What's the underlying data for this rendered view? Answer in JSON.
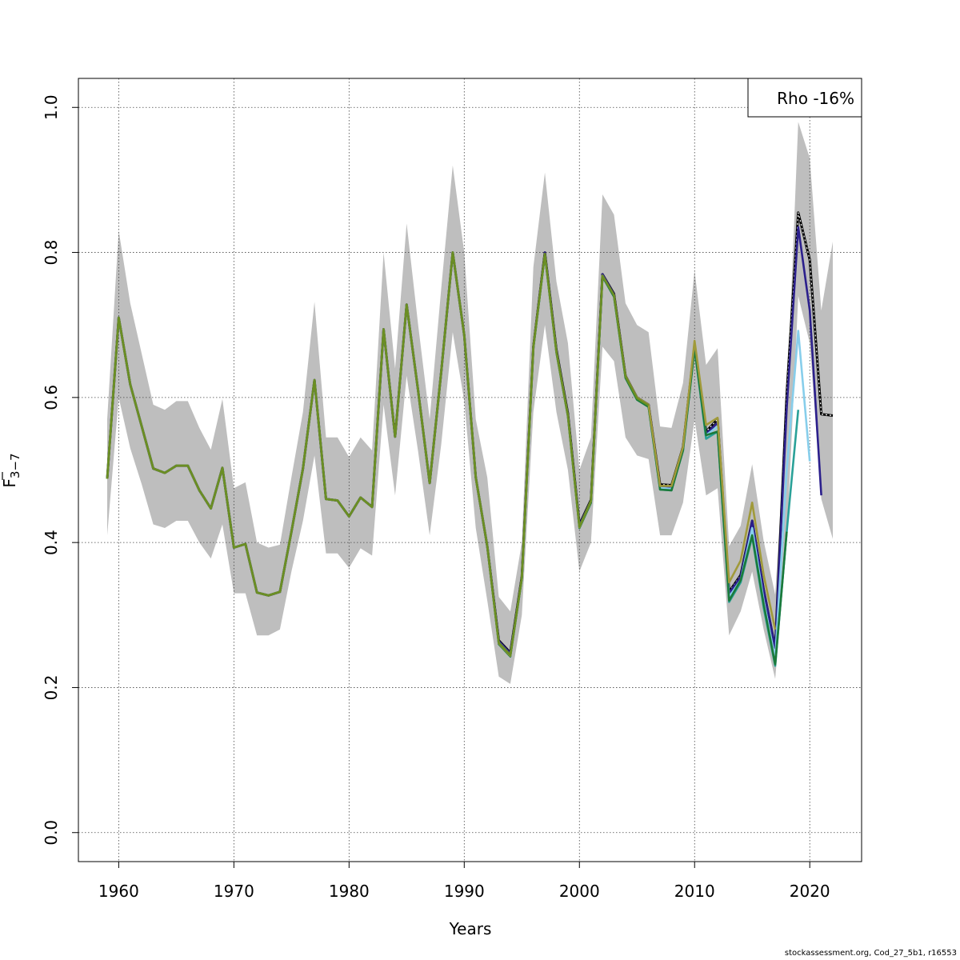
{
  "footer": "stockassessment.org, Cod_27_5b1, r16553",
  "chart_data": {
    "type": "line",
    "xlabel": "Years",
    "ylabel": "F̄3−7",
    "ylabel_main": "F",
    "ylabel_sub": "3−7",
    "xlim": [
      1956.5,
      2024.5
    ],
    "ylim": [
      -0.04,
      1.04
    ],
    "xticks": [
      1960,
      1970,
      1980,
      1990,
      2000,
      2010,
      2020
    ],
    "yticks": [
      0.0,
      0.2,
      0.4,
      0.6,
      0.8,
      1.0
    ],
    "ytick_labels": [
      "0.0",
      "0.2",
      "0.4",
      "0.6",
      "0.8",
      "1.0"
    ],
    "grid": true,
    "legend": {
      "position": "top-right",
      "text": "Rho -16%"
    },
    "confidence_band": {
      "color": "#bebebe",
      "years": [
        1959,
        1960,
        1961,
        1962,
        1963,
        1964,
        1965,
        1966,
        1967,
        1968,
        1969,
        1970,
        1971,
        1972,
        1973,
        1974,
        1975,
        1976,
        1977,
        1978,
        1979,
        1980,
        1981,
        1982,
        1983,
        1984,
        1985,
        1986,
        1987,
        1988,
        1989,
        1990,
        1991,
        1992,
        1993,
        1994,
        1995,
        1996,
        1997,
        1998,
        1999,
        2000,
        2001,
        2002,
        2003,
        2004,
        2005,
        2006,
        2007,
        2008,
        2009,
        2010,
        2011,
        2012,
        2013,
        2014,
        2015,
        2016,
        2017,
        2018,
        2019,
        2020,
        2021,
        2022
      ],
      "lower": [
        0.41,
        0.6,
        0.53,
        0.48,
        0.425,
        0.42,
        0.43,
        0.43,
        0.4,
        0.378,
        0.425,
        0.33,
        0.33,
        0.272,
        0.272,
        0.28,
        0.36,
        0.43,
        0.52,
        0.385,
        0.385,
        0.365,
        0.392,
        0.382,
        0.59,
        0.465,
        0.63,
        0.525,
        0.41,
        0.535,
        0.69,
        0.595,
        0.42,
        0.32,
        0.215,
        0.205,
        0.3,
        0.58,
        0.7,
        0.58,
        0.5,
        0.36,
        0.4,
        0.67,
        0.65,
        0.545,
        0.52,
        0.515,
        0.41,
        0.41,
        0.455,
        0.57,
        0.465,
        0.475,
        0.272,
        0.305,
        0.36,
        0.28,
        0.212,
        0.4,
        0.74,
        0.675,
        0.46,
        0.405
      ],
      "upper": [
        0.57,
        0.83,
        0.73,
        0.66,
        0.59,
        0.583,
        0.595,
        0.595,
        0.558,
        0.528,
        0.598,
        0.475,
        0.483,
        0.4,
        0.393,
        0.397,
        0.49,
        0.58,
        0.732,
        0.545,
        0.545,
        0.518,
        0.545,
        0.527,
        0.8,
        0.64,
        0.84,
        0.7,
        0.57,
        0.75,
        0.92,
        0.8,
        0.57,
        0.49,
        0.325,
        0.305,
        0.4,
        0.78,
        0.91,
        0.76,
        0.675,
        0.5,
        0.545,
        0.88,
        0.852,
        0.73,
        0.7,
        0.69,
        0.56,
        0.558,
        0.62,
        0.775,
        0.645,
        0.668,
        0.395,
        0.423,
        0.508,
        0.402,
        0.328,
        0.59,
        0.98,
        0.93,
        0.72,
        0.815
      ]
    },
    "series": [
      {
        "color": "#000000",
        "dashed": true,
        "years": [
          1959,
          1960,
          1961,
          1962,
          1963,
          1964,
          1965,
          1966,
          1967,
          1968,
          1969,
          1970,
          1971,
          1972,
          1973,
          1974,
          1975,
          1976,
          1977,
          1978,
          1979,
          1980,
          1981,
          1982,
          1983,
          1984,
          1985,
          1986,
          1987,
          1988,
          1989,
          1990,
          1991,
          1992,
          1993,
          1994,
          1995,
          1996,
          1997,
          1998,
          1999,
          2000,
          2001,
          2002,
          2003,
          2004,
          2005,
          2006,
          2007,
          2008,
          2009,
          2010,
          2011,
          2012,
          2013,
          2014,
          2015,
          2016,
          2017,
          2018,
          2019,
          2020,
          2021,
          2022
        ],
        "values": [
          0.488,
          0.71,
          0.618,
          0.56,
          0.502,
          0.496,
          0.506,
          0.506,
          0.472,
          0.447,
          0.503,
          0.393,
          0.398,
          0.331,
          0.327,
          0.332,
          0.415,
          0.502,
          0.624,
          0.46,
          0.458,
          0.436,
          0.462,
          0.449,
          0.694,
          0.546,
          0.728,
          0.609,
          0.482,
          0.635,
          0.8,
          0.686,
          0.49,
          0.395,
          0.265,
          0.248,
          0.353,
          0.67,
          0.8,
          0.666,
          0.578,
          0.425,
          0.459,
          0.77,
          0.743,
          0.63,
          0.6,
          0.59,
          0.48,
          0.479,
          0.532,
          0.672,
          0.553,
          0.57,
          0.332,
          0.355,
          0.43,
          0.335,
          0.255,
          0.605,
          0.855,
          0.79,
          0.577,
          0.575
        ]
      },
      {
        "color": "#2b1f8c",
        "dashed": false,
        "years": [
          1959,
          1960,
          1961,
          1962,
          1963,
          1964,
          1965,
          1966,
          1967,
          1968,
          1969,
          1970,
          1971,
          1972,
          1973,
          1974,
          1975,
          1976,
          1977,
          1978,
          1979,
          1980,
          1981,
          1982,
          1983,
          1984,
          1985,
          1986,
          1987,
          1988,
          1989,
          1990,
          1991,
          1992,
          1993,
          1994,
          1995,
          1996,
          1997,
          1998,
          1999,
          2000,
          2001,
          2002,
          2003,
          2004,
          2005,
          2006,
          2007,
          2008,
          2009,
          2010,
          2011,
          2012,
          2013,
          2014,
          2015,
          2016,
          2017,
          2018,
          2019,
          2020,
          2021
        ],
        "values": [
          0.488,
          0.71,
          0.618,
          0.56,
          0.502,
          0.496,
          0.506,
          0.506,
          0.472,
          0.447,
          0.503,
          0.393,
          0.398,
          0.331,
          0.327,
          0.332,
          0.415,
          0.502,
          0.624,
          0.46,
          0.458,
          0.436,
          0.462,
          0.449,
          0.694,
          0.546,
          0.728,
          0.609,
          0.482,
          0.635,
          0.8,
          0.686,
          0.49,
          0.395,
          0.264,
          0.247,
          0.352,
          0.67,
          0.8,
          0.665,
          0.577,
          0.424,
          0.458,
          0.77,
          0.742,
          0.63,
          0.6,
          0.59,
          0.478,
          0.477,
          0.53,
          0.672,
          0.55,
          0.565,
          0.33,
          0.353,
          0.43,
          0.335,
          0.255,
          0.585,
          0.835,
          0.72,
          0.465
        ]
      },
      {
        "color": "#87ceeb",
        "dashed": false,
        "years": [
          1959,
          1960,
          1961,
          1962,
          1963,
          1964,
          1965,
          1966,
          1967,
          1968,
          1969,
          1970,
          1971,
          1972,
          1973,
          1974,
          1975,
          1976,
          1977,
          1978,
          1979,
          1980,
          1981,
          1982,
          1983,
          1984,
          1985,
          1986,
          1987,
          1988,
          1989,
          1990,
          1991,
          1992,
          1993,
          1994,
          1995,
          1996,
          1997,
          1998,
          1999,
          2000,
          2001,
          2002,
          2003,
          2004,
          2005,
          2006,
          2007,
          2008,
          2009,
          2010,
          2011,
          2012,
          2013,
          2014,
          2015,
          2016,
          2017,
          2018,
          2019,
          2020
        ],
        "values": [
          0.488,
          0.71,
          0.618,
          0.56,
          0.502,
          0.496,
          0.506,
          0.506,
          0.472,
          0.447,
          0.503,
          0.393,
          0.398,
          0.331,
          0.327,
          0.332,
          0.415,
          0.502,
          0.624,
          0.46,
          0.458,
          0.436,
          0.462,
          0.449,
          0.694,
          0.546,
          0.728,
          0.609,
          0.482,
          0.635,
          0.8,
          0.686,
          0.49,
          0.395,
          0.262,
          0.245,
          0.35,
          0.668,
          0.797,
          0.663,
          0.575,
          0.422,
          0.456,
          0.768,
          0.74,
          0.628,
          0.598,
          0.588,
          0.475,
          0.474,
          0.528,
          0.67,
          0.548,
          0.56,
          0.325,
          0.348,
          0.42,
          0.32,
          0.24,
          0.5,
          0.692,
          0.512
        ]
      },
      {
        "color": "#2aa198",
        "dashed": false,
        "years": [
          1959,
          1960,
          1961,
          1962,
          1963,
          1964,
          1965,
          1966,
          1967,
          1968,
          1969,
          1970,
          1971,
          1972,
          1973,
          1974,
          1975,
          1976,
          1977,
          1978,
          1979,
          1980,
          1981,
          1982,
          1983,
          1984,
          1985,
          1986,
          1987,
          1988,
          1989,
          1990,
          1991,
          1992,
          1993,
          1994,
          1995,
          1996,
          1997,
          1998,
          1999,
          2000,
          2001,
          2002,
          2003,
          2004,
          2005,
          2006,
          2007,
          2008,
          2009,
          2010,
          2011,
          2012,
          2013,
          2014,
          2015,
          2016,
          2017,
          2018,
          2019
        ],
        "values": [
          0.488,
          0.71,
          0.618,
          0.56,
          0.502,
          0.496,
          0.506,
          0.506,
          0.472,
          0.447,
          0.503,
          0.393,
          0.398,
          0.331,
          0.327,
          0.332,
          0.415,
          0.502,
          0.624,
          0.46,
          0.458,
          0.436,
          0.462,
          0.449,
          0.694,
          0.546,
          0.728,
          0.609,
          0.482,
          0.635,
          0.8,
          0.686,
          0.49,
          0.395,
          0.26,
          0.243,
          0.35,
          0.668,
          0.797,
          0.662,
          0.574,
          0.42,
          0.455,
          0.767,
          0.739,
          0.627,
          0.597,
          0.587,
          0.473,
          0.472,
          0.527,
          0.668,
          0.543,
          0.553,
          0.318,
          0.345,
          0.408,
          0.31,
          0.23,
          0.415,
          0.583
        ]
      },
      {
        "color": "#1a7a3a",
        "dashed": false,
        "years": [
          1959,
          1960,
          1961,
          1962,
          1963,
          1964,
          1965,
          1966,
          1967,
          1968,
          1969,
          1970,
          1971,
          1972,
          1973,
          1974,
          1975,
          1976,
          1977,
          1978,
          1979,
          1980,
          1981,
          1982,
          1983,
          1984,
          1985,
          1986,
          1987,
          1988,
          1989,
          1990,
          1991,
          1992,
          1993,
          1994,
          1995,
          1996,
          1997,
          1998,
          1999,
          2000,
          2001,
          2002,
          2003,
          2004,
          2005,
          2006,
          2007,
          2008,
          2009,
          2010,
          2011,
          2012,
          2013,
          2014,
          2015,
          2016,
          2017,
          2018
        ],
        "values": [
          0.488,
          0.71,
          0.618,
          0.56,
          0.502,
          0.496,
          0.506,
          0.506,
          0.472,
          0.447,
          0.503,
          0.393,
          0.398,
          0.331,
          0.327,
          0.332,
          0.415,
          0.502,
          0.624,
          0.46,
          0.458,
          0.436,
          0.462,
          0.449,
          0.694,
          0.546,
          0.728,
          0.609,
          0.482,
          0.635,
          0.8,
          0.686,
          0.49,
          0.395,
          0.26,
          0.243,
          0.35,
          0.668,
          0.797,
          0.662,
          0.574,
          0.42,
          0.455,
          0.767,
          0.739,
          0.627,
          0.597,
          0.587,
          0.473,
          0.472,
          0.527,
          0.668,
          0.548,
          0.553,
          0.32,
          0.348,
          0.41,
          0.315,
          0.232,
          0.415
        ]
      },
      {
        "color": "#a09a3a",
        "dashed": false,
        "years": [
          1959,
          1960,
          1961,
          1962,
          1963,
          1964,
          1965,
          1966,
          1967,
          1968,
          1969,
          1970,
          1971,
          1972,
          1973,
          1974,
          1975,
          1976,
          1977,
          1978,
          1979,
          1980,
          1981,
          1982,
          1983,
          1984,
          1985,
          1986,
          1987,
          1988,
          1989,
          1990,
          1991,
          1992,
          1993,
          1994,
          1995,
          1996,
          1997,
          1998,
          1999,
          2000,
          2001,
          2002,
          2003,
          2004,
          2005,
          2006,
          2007,
          2008,
          2009,
          2010,
          2011,
          2012,
          2013,
          2014,
          2015,
          2016,
          2017
        ],
        "values": [
          0.488,
          0.71,
          0.618,
          0.56,
          0.502,
          0.496,
          0.506,
          0.506,
          0.472,
          0.447,
          0.503,
          0.393,
          0.398,
          0.331,
          0.327,
          0.332,
          0.415,
          0.502,
          0.624,
          0.46,
          0.458,
          0.436,
          0.462,
          0.449,
          0.694,
          0.546,
          0.728,
          0.609,
          0.482,
          0.635,
          0.8,
          0.686,
          0.49,
          0.395,
          0.261,
          0.244,
          0.351,
          0.669,
          0.798,
          0.663,
          0.575,
          0.421,
          0.457,
          0.768,
          0.741,
          0.63,
          0.6,
          0.59,
          0.478,
          0.478,
          0.532,
          0.678,
          0.562,
          0.572,
          0.345,
          0.375,
          0.455,
          0.355,
          0.28
        ]
      },
      {
        "color": "#6b8e23",
        "dashed": false,
        "years": [
          1959,
          1960,
          1961,
          1962,
          1963,
          1964,
          1965,
          1966,
          1967,
          1968,
          1969,
          1970,
          1971,
          1972,
          1973,
          1974,
          1975,
          1976,
          1977,
          1978,
          1979,
          1980,
          1981,
          1982,
          1983,
          1984,
          1985,
          1986,
          1987,
          1988,
          1989,
          1990,
          1991,
          1992,
          1993,
          1994,
          1995,
          1996,
          1997,
          1998,
          1999,
          2000,
          2001,
          2002,
          2003,
          2004,
          2005,
          2006
        ],
        "values": [
          0.488,
          0.71,
          0.618,
          0.56,
          0.502,
          0.496,
          0.506,
          0.506,
          0.472,
          0.447,
          0.503,
          0.393,
          0.398,
          0.331,
          0.327,
          0.332,
          0.415,
          0.502,
          0.624,
          0.46,
          0.458,
          0.436,
          0.462,
          0.449,
          0.694,
          0.546,
          0.728,
          0.609,
          0.482,
          0.635,
          0.8,
          0.686,
          0.49,
          0.395,
          0.262,
          0.245,
          0.352,
          0.67,
          0.798,
          0.664,
          0.576,
          0.422,
          0.458,
          0.768,
          0.741,
          0.629,
          0.599,
          0.589
        ]
      }
    ]
  }
}
